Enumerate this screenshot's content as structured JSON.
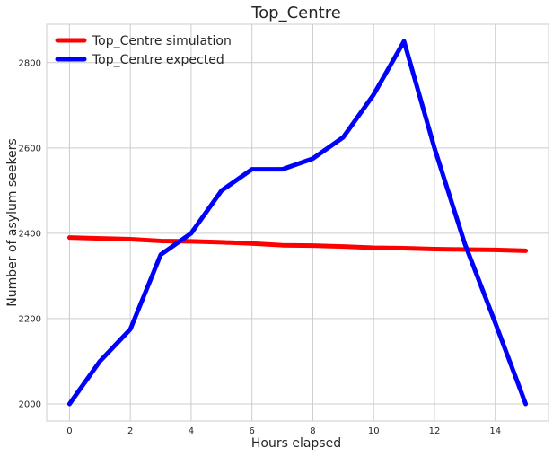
{
  "chart_data": {
    "type": "line",
    "title": "Top_Centre",
    "xlabel": "Hours elapsed",
    "ylabel": "Number of asylum seekers",
    "xlim": [
      -0.75,
      15.75
    ],
    "ylim": [
      1960,
      2890
    ],
    "xticks": [
      0,
      2,
      4,
      6,
      8,
      10,
      12,
      14
    ],
    "yticks": [
      2000,
      2200,
      2400,
      2600,
      2800
    ],
    "grid": true,
    "legend_position": "top-left",
    "x": [
      0,
      1,
      2,
      3,
      4,
      5,
      6,
      7,
      8,
      9,
      10,
      11,
      12,
      13,
      14,
      15
    ],
    "series": [
      {
        "name": "Top_Centre simulation",
        "color": "#ff0000",
        "values": [
          2390,
          2388,
          2386,
          2382,
          2381,
          2379,
          2376,
          2372,
          2371,
          2369,
          2366,
          2365,
          2363,
          2362,
          2361,
          2359
        ]
      },
      {
        "name": "Top_Centre expected",
        "color": "#0000ff",
        "values": [
          2000,
          2100,
          2175,
          2350,
          2400,
          2500,
          2550,
          2550,
          2575,
          2625,
          2725,
          2850,
          2600,
          2375,
          2190,
          2000
        ]
      }
    ]
  }
}
